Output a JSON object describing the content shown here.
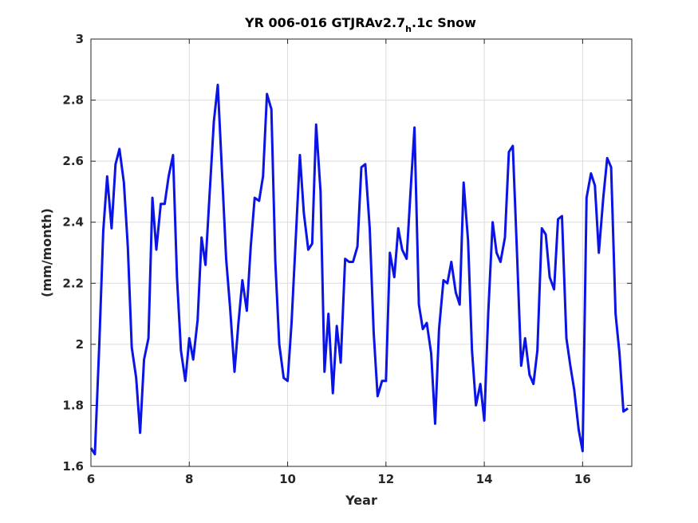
{
  "chart_data": {
    "type": "line",
    "title_main": "YR 006-016 GTJRAv2.7",
    "title_subscript": "h",
    "title_tail": ".1c Snow",
    "xlabel": "Year",
    "ylabel": "(mm/month)",
    "xlim": [
      6,
      17
    ],
    "ylim": [
      1.6,
      3.0
    ],
    "xticks": [
      6,
      8,
      10,
      12,
      14,
      16
    ],
    "xtick_labels": [
      "6",
      "8",
      "10",
      "12",
      "14",
      "16"
    ],
    "yticks": [
      1.6,
      1.8,
      2.0,
      2.2,
      2.4,
      2.6,
      2.8,
      3.0
    ],
    "ytick_labels": [
      "1.6",
      "1.8",
      "2",
      "2.2",
      "2.4",
      "2.6",
      "2.8",
      "3"
    ],
    "grid": true,
    "line_color": "#0a14e6",
    "series": [
      {
        "x": [
          6.0,
          6.08,
          6.17,
          6.25,
          6.33,
          6.42,
          6.5,
          6.58,
          6.67,
          6.75,
          6.83,
          6.92,
          7.0,
          7.08,
          7.17,
          7.25,
          7.33,
          7.42,
          7.5,
          7.58,
          7.67,
          7.75,
          7.83,
          7.92,
          8.0,
          8.08,
          8.17,
          8.25,
          8.33,
          8.42,
          8.5,
          8.58,
          8.67,
          8.75,
          8.83,
          8.92,
          9.0,
          9.08,
          9.17,
          9.25,
          9.33,
          9.42,
          9.5,
          9.58,
          9.67,
          9.75,
          9.83,
          9.92,
          10.0,
          10.08,
          10.17,
          10.25,
          10.33,
          10.42,
          10.5,
          10.58,
          10.67,
          10.75,
          10.83,
          10.92,
          11.0,
          11.08,
          11.17,
          11.25,
          11.33,
          11.42,
          11.5,
          11.58,
          11.67,
          11.75,
          11.83,
          11.92,
          12.0,
          12.08,
          12.17,
          12.25,
          12.33,
          12.42,
          12.5,
          12.58,
          12.67,
          12.75,
          12.83,
          12.92,
          13.0,
          13.08,
          13.17,
          13.25,
          13.33,
          13.42,
          13.5,
          13.58,
          13.67,
          13.75,
          13.83,
          13.92,
          14.0,
          14.08,
          14.17,
          14.25,
          14.33,
          14.42,
          14.5,
          14.58,
          14.67,
          14.75,
          14.83,
          14.92,
          15.0,
          15.08,
          15.17,
          15.25,
          15.33,
          15.42,
          15.5,
          15.58,
          15.67,
          15.75,
          15.83,
          15.92,
          16.0,
          16.08,
          16.17,
          16.25,
          16.33,
          16.42,
          16.5,
          16.58,
          16.67,
          16.75,
          16.83,
          16.92
        ],
        "y": [
          1.66,
          1.64,
          2.0,
          2.37,
          2.55,
          2.38,
          2.59,
          2.64,
          2.53,
          2.32,
          1.99,
          1.89,
          1.71,
          1.95,
          2.02,
          2.48,
          2.31,
          2.46,
          2.46,
          2.55,
          2.62,
          2.22,
          1.98,
          1.88,
          2.02,
          1.95,
          2.08,
          2.35,
          2.26,
          2.51,
          2.73,
          2.85,
          2.55,
          2.28,
          2.12,
          1.91,
          2.07,
          2.21,
          2.11,
          2.32,
          2.48,
          2.47,
          2.55,
          2.82,
          2.77,
          2.27,
          2.0,
          1.89,
          1.88,
          2.07,
          2.36,
          2.62,
          2.43,
          2.31,
          2.33,
          2.72,
          2.5,
          1.91,
          2.1,
          1.84,
          2.06,
          1.94,
          2.28,
          2.27,
          2.27,
          2.32,
          2.58,
          2.59,
          2.38,
          2.04,
          1.83,
          1.88,
          1.88,
          2.3,
          2.22,
          2.38,
          2.31,
          2.28,
          2.5,
          2.71,
          2.13,
          2.05,
          2.07,
          1.97,
          1.74,
          2.05,
          2.21,
          2.2,
          2.27,
          2.17,
          2.13,
          2.53,
          2.34,
          1.98,
          1.8,
          1.87,
          1.75,
          2.1,
          2.4,
          2.3,
          2.27,
          2.35,
          2.63,
          2.65,
          2.28,
          1.93,
          2.02,
          1.9,
          1.87,
          1.98,
          2.38,
          2.36,
          2.22,
          2.18,
          2.41,
          2.42,
          2.02,
          1.93,
          1.85,
          1.72,
          1.65,
          2.48,
          2.56,
          2.52,
          2.3,
          2.48,
          2.61,
          2.58,
          2.1,
          1.97,
          1.78,
          1.79
        ]
      }
    ]
  }
}
